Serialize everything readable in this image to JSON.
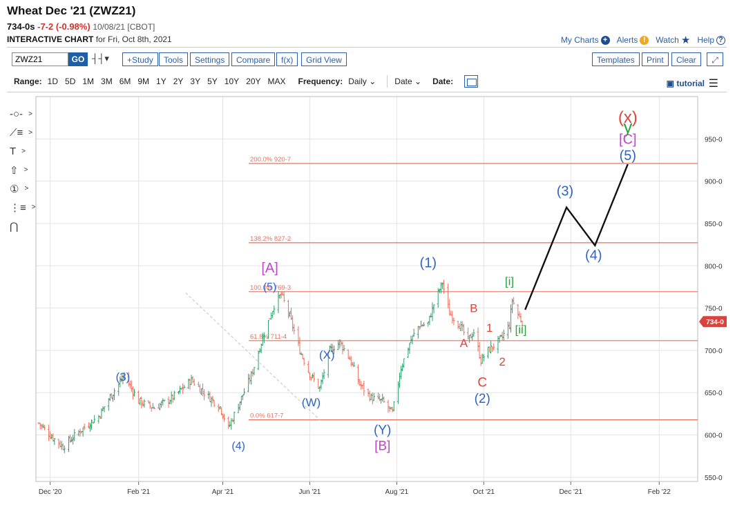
{
  "header": {
    "title": "Wheat Dec '21 (ZWZ21)",
    "last": "734-0s",
    "change": "-7-2 (-0.98%)",
    "quote_date": "10/08/21 [CBOT]",
    "subtitle_strong": "INTERACTIVE CHART",
    "subtitle_rest": "for Fri, Oct 8th, 2021"
  },
  "links": {
    "my_charts": "My Charts",
    "alerts": "Alerts",
    "watch": "Watch",
    "help": "Help"
  },
  "toolbar": {
    "symbol": "ZWZ21",
    "go": "GO",
    "study": "+Study",
    "tools": "Tools",
    "settings": "Settings",
    "compare": "Compare",
    "fx": "f(x)",
    "grid_view": "Grid View",
    "templates": "Templates",
    "print": "Print",
    "clear": "Clear"
  },
  "range": {
    "label": "Range:",
    "options": [
      "1D",
      "5D",
      "1M",
      "3M",
      "6M",
      "9M",
      "1Y",
      "2Y",
      "3Y",
      "5Y",
      "10Y",
      "20Y",
      "MAX"
    ],
    "frequency_label": "Frequency:",
    "frequency": "Daily",
    "date_mode": "Date",
    "date_label": "Date:"
  },
  "tutorial": "tutorial",
  "colors": {
    "up": "#2e9e6a",
    "down": "#e8705e",
    "fib": "#e8705e",
    "blue": "#2f63c7",
    "red": "#e0443a",
    "purple": "#c145c9",
    "green": "#29a33a",
    "price_tag": "#d9433b"
  },
  "chart_data": {
    "type": "candlestick",
    "title": "Wheat Dec '21 (ZWZ21)",
    "y_range": [
      545,
      1000
    ],
    "y_ticks": [
      {
        "v": 550,
        "t": "550-0"
      },
      {
        "v": 600,
        "t": "600-0"
      },
      {
        "v": 650,
        "t": "650-0"
      },
      {
        "v": 700,
        "t": "700-0"
      },
      {
        "v": 750,
        "t": "750-0"
      },
      {
        "v": 800,
        "t": "800-0"
      },
      {
        "v": 850,
        "t": "850-0"
      },
      {
        "v": 900,
        "t": "900-0"
      },
      {
        "v": 950,
        "t": "950-0"
      }
    ],
    "x_range": [
      "2020-11-21",
      "2022-02-28"
    ],
    "x_ticks": [
      {
        "d": "2020-12-01",
        "t": "Dec '20"
      },
      {
        "d": "2021-02-01",
        "t": "Feb '21"
      },
      {
        "d": "2021-04-01",
        "t": "Apr '21"
      },
      {
        "d": "2021-06-01",
        "t": "Jun '21"
      },
      {
        "d": "2021-08-01",
        "t": "Aug '21"
      },
      {
        "d": "2021-10-01",
        "t": "Oct '21"
      },
      {
        "d": "2021-12-01",
        "t": "Dec '21"
      },
      {
        "d": "2022-02-01",
        "t": "Feb '22"
      }
    ],
    "price_anchors": [
      [
        "2020-11-23",
        614
      ],
      [
        "2020-12-02",
        598
      ],
      [
        "2020-12-10",
        586
      ],
      [
        "2020-12-22",
        605
      ],
      [
        "2021-01-04",
        622
      ],
      [
        "2021-01-12",
        645
      ],
      [
        "2021-01-22",
        670
      ],
      [
        "2021-02-01",
        640
      ],
      [
        "2021-02-12",
        632
      ],
      [
        "2021-02-24",
        643
      ],
      [
        "2021-03-02",
        652
      ],
      [
        "2021-03-10",
        665
      ],
      [
        "2021-03-19",
        650
      ],
      [
        "2021-03-30",
        633
      ],
      [
        "2021-04-05",
        608
      ],
      [
        "2021-04-13",
        640
      ],
      [
        "2021-04-21",
        670
      ],
      [
        "2021-04-30",
        720
      ],
      [
        "2021-05-07",
        753
      ],
      [
        "2021-05-12",
        766
      ],
      [
        "2021-05-18",
        740
      ],
      [
        "2021-05-25",
        700
      ],
      [
        "2021-06-01",
        672
      ],
      [
        "2021-06-08",
        655
      ],
      [
        "2021-06-15",
        700
      ],
      [
        "2021-06-22",
        710
      ],
      [
        "2021-06-29",
        690
      ],
      [
        "2021-07-06",
        660
      ],
      [
        "2021-07-14",
        644
      ],
      [
        "2021-07-22",
        640
      ],
      [
        "2021-07-29",
        626
      ],
      [
        "2021-08-04",
        680
      ],
      [
        "2021-08-11",
        712
      ],
      [
        "2021-08-16",
        728
      ],
      [
        "2021-08-23",
        732
      ],
      [
        "2021-08-28",
        760
      ],
      [
        "2021-09-02",
        780
      ],
      [
        "2021-09-07",
        744
      ],
      [
        "2021-09-14",
        730
      ],
      [
        "2021-09-20",
        712
      ],
      [
        "2021-09-24",
        722
      ],
      [
        "2021-09-29",
        688
      ],
      [
        "2021-10-04",
        700
      ],
      [
        "2021-10-10",
        708
      ],
      [
        "2021-10-14",
        716
      ],
      [
        "2021-10-19",
        730
      ],
      [
        "2021-10-21",
        760
      ],
      [
        "2021-10-25",
        742
      ],
      [
        "2021-10-28",
        734
      ]
    ],
    "last_price": "734-0",
    "last_value": 734,
    "fib_levels": [
      {
        "value": 920.875,
        "label": "200.0% 920-7"
      },
      {
        "value": 827.25,
        "label": "138.2% 827-2"
      },
      {
        "value": 769.375,
        "label": "100.0% 769-3"
      },
      {
        "value": 711.5,
        "label": "61.8% 711-4"
      },
      {
        "value": 617.875,
        "label": "0.0% 617-7"
      }
    ],
    "trendline": {
      "from": [
        "2021-03-06",
        768
      ],
      "to": [
        "2021-06-08",
        617.875
      ]
    },
    "projection": [
      [
        "2021-10-30",
        748
      ],
      [
        "2021-11-28",
        869
      ],
      [
        "2021-12-18",
        824
      ],
      [
        "2022-01-10",
        920
      ]
    ],
    "wave_labels": [
      {
        "t": "(3)",
        "d": "2021-01-21",
        "v": 664,
        "c": "blue",
        "s": 17
      },
      {
        "t": "(4)",
        "d": "2021-04-12",
        "v": 583,
        "c": "blue",
        "s": 16
      },
      {
        "t": "[A]",
        "d": "2021-05-04",
        "v": 792,
        "c": "purple",
        "s": 20
      },
      {
        "t": "(5)",
        "d": "2021-05-04",
        "v": 771,
        "c": "blue",
        "s": 16
      },
      {
        "t": "(X)",
        "d": "2021-06-13",
        "v": 690,
        "c": "blue",
        "s": 17
      },
      {
        "t": "(W)",
        "d": "2021-06-02",
        "v": 634,
        "c": "blue",
        "s": 17
      },
      {
        "t": "(Y)",
        "d": "2021-07-22",
        "v": 601,
        "c": "blue",
        "s": 19
      },
      {
        "t": "[B]",
        "d": "2021-07-22",
        "v": 582,
        "c": "purple",
        "s": 19
      },
      {
        "t": "(1)",
        "d": "2021-08-23",
        "v": 798,
        "c": "blue",
        "s": 20
      },
      {
        "t": "B",
        "d": "2021-09-24",
        "v": 745,
        "c": "red",
        "s": 17
      },
      {
        "t": "A",
        "d": "2021-09-17",
        "v": 704,
        "c": "red",
        "s": 17
      },
      {
        "t": "1",
        "d": "2021-10-05",
        "v": 722,
        "c": "red",
        "s": 17
      },
      {
        "t": "2",
        "d": "2021-10-14",
        "v": 682,
        "c": "red",
        "s": 17
      },
      {
        "t": "C",
        "d": "2021-09-30",
        "v": 657,
        "c": "red",
        "s": 19
      },
      {
        "t": "(2)",
        "d": "2021-09-30",
        "v": 638,
        "c": "blue",
        "s": 19
      },
      {
        "t": "[i]",
        "d": "2021-10-19",
        "v": 777,
        "c": "green",
        "s": 17
      },
      {
        "t": "[ii]",
        "d": "2021-10-27",
        "v": 720,
        "c": "green",
        "s": 17
      },
      {
        "t": "(3)",
        "d": "2021-11-27",
        "v": 883,
        "c": "blue",
        "s": 20
      },
      {
        "t": "(4)",
        "d": "2021-12-17",
        "v": 807,
        "c": "blue",
        "s": 20
      },
      {
        "t": "(x)",
        "d": "2022-01-10",
        "v": 969,
        "c": "red",
        "s": 24
      },
      {
        "t": "y",
        "d": "2022-01-10",
        "v": 957,
        "c": "green",
        "s": 26
      },
      {
        "t": "[C]",
        "d": "2022-01-10",
        "v": 944,
        "c": "purple",
        "s": 20
      },
      {
        "t": "(5)",
        "d": "2022-01-10",
        "v": 925,
        "c": "blue",
        "s": 20
      }
    ]
  }
}
